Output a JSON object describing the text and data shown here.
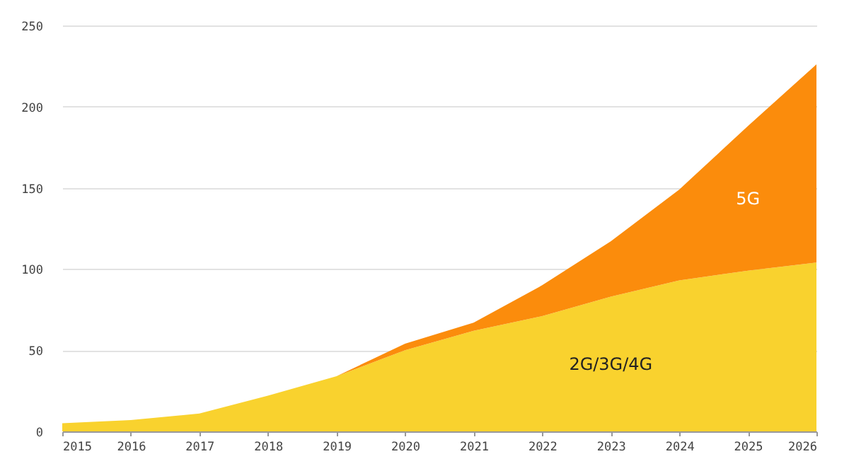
{
  "chart_data": {
    "type": "area",
    "stacked": true,
    "categories": [
      "2015",
      "2016",
      "2017",
      "2018",
      "2019",
      "2020",
      "2021",
      "2022",
      "2023",
      "2024",
      "2025",
      "2026"
    ],
    "series": [
      {
        "name": "2G/3G/4G",
        "color": "#f9d22e",
        "values": [
          5,
          7,
          11,
          22,
          34,
          50,
          62,
          71,
          83,
          93,
          99,
          104
        ]
      },
      {
        "name": "5G",
        "color": "#fb8c0c",
        "values": [
          0,
          0,
          0,
          0,
          0,
          4,
          5,
          19,
          34,
          56,
          89,
          122
        ]
      }
    ],
    "ylim": [
      0,
      250
    ],
    "yticks": [
      0,
      50,
      100,
      150,
      200,
      250
    ],
    "grid": "y"
  }
}
